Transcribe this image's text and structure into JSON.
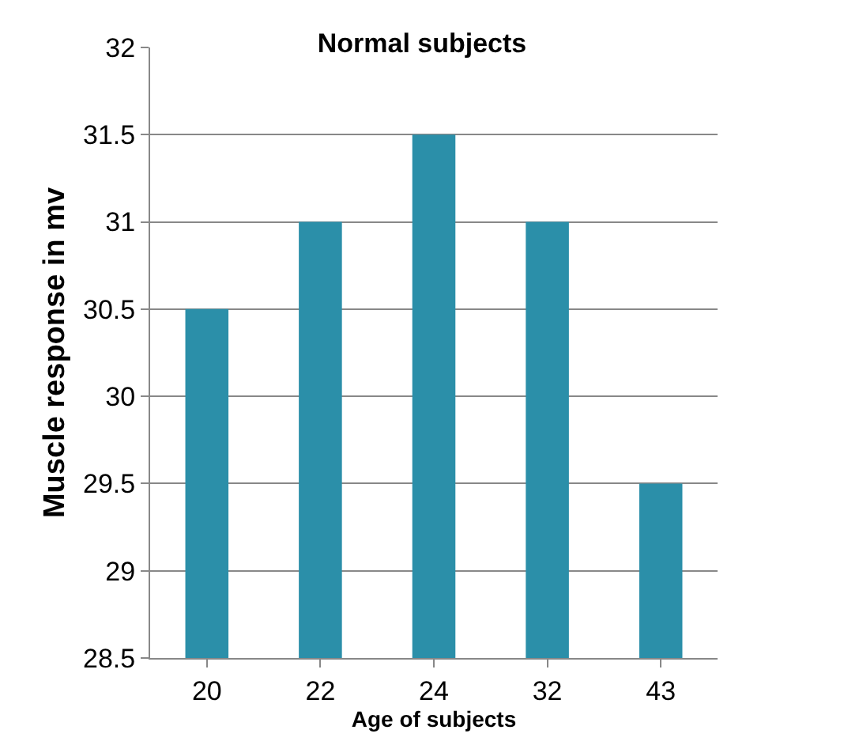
{
  "chart_data": {
    "type": "bar",
    "title": "Normal subjects",
    "xlabel": "Age of subjects",
    "ylabel": "Muscle response in mv",
    "categories": [
      "20",
      "22",
      "24",
      "32",
      "43"
    ],
    "values": [
      30.5,
      31,
      31.5,
      31,
      29.5
    ],
    "color": "#2b8fa9",
    "ylim": [
      28.5,
      32
    ],
    "yticks": [
      28.5,
      29,
      29.5,
      30,
      30.5,
      31,
      31.5,
      32
    ],
    "grid": "y"
  }
}
